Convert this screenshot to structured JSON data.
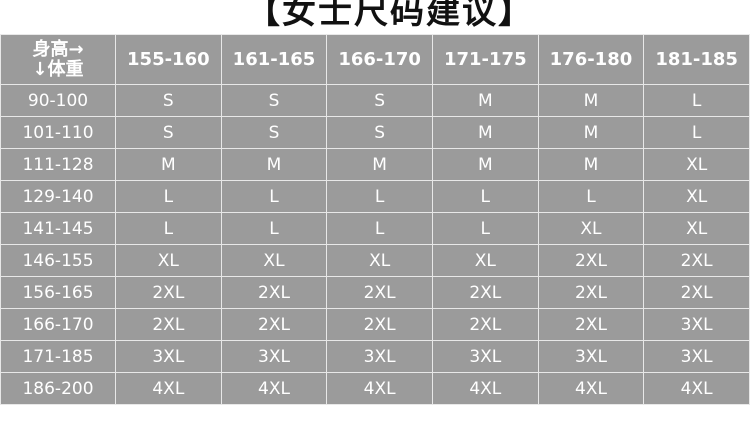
{
  "title": "【女士尺码建议】",
  "table": {
    "corner": {
      "top": "身高→",
      "bottom": "↓体重"
    },
    "heights": [
      "155-160",
      "161-165",
      "166-170",
      "171-175",
      "176-180",
      "181-185"
    ],
    "rows": [
      {
        "weight": "90-100",
        "sizes": [
          "S",
          "S",
          "S",
          "M",
          "M",
          "L"
        ]
      },
      {
        "weight": "101-110",
        "sizes": [
          "S",
          "S",
          "S",
          "M",
          "M",
          "L"
        ]
      },
      {
        "weight": "111-128",
        "sizes": [
          "M",
          "M",
          "M",
          "M",
          "M",
          "XL"
        ]
      },
      {
        "weight": "129-140",
        "sizes": [
          "L",
          "L",
          "L",
          "L",
          "L",
          "XL"
        ]
      },
      {
        "weight": "141-145",
        "sizes": [
          "L",
          "L",
          "L",
          "L",
          "XL",
          "XL"
        ]
      },
      {
        "weight": "146-155",
        "sizes": [
          "XL",
          "XL",
          "XL",
          "XL",
          "2XL",
          "2XL"
        ]
      },
      {
        "weight": "156-165",
        "sizes": [
          "2XL",
          "2XL",
          "2XL",
          "2XL",
          "2XL",
          "2XL"
        ]
      },
      {
        "weight": "166-170",
        "sizes": [
          "2XL",
          "2XL",
          "2XL",
          "2XL",
          "2XL",
          "3XL"
        ]
      },
      {
        "weight": "171-185",
        "sizes": [
          "3XL",
          "3XL",
          "3XL",
          "3XL",
          "3XL",
          "3XL"
        ]
      },
      {
        "weight": "186-200",
        "sizes": [
          "4XL",
          "4XL",
          "4XL",
          "4XL",
          "4XL",
          "4XL"
        ]
      }
    ]
  },
  "colors": {
    "cell_bg": "#9b9b9b",
    "grid": "#e8e8e8",
    "text": "#ffffff"
  }
}
